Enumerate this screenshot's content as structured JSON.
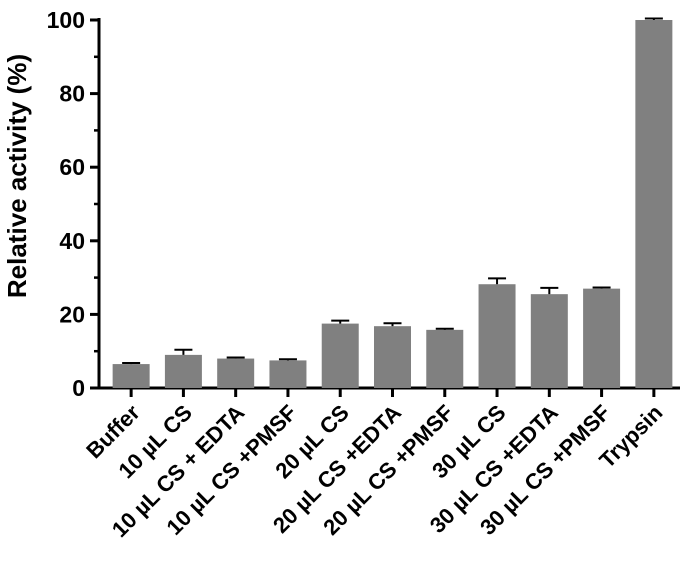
{
  "chart_data": {
    "type": "bar",
    "ylabel": "Relative activity (%)",
    "xlabel": "",
    "ylim": [
      0,
      100
    ],
    "yticks": [
      0,
      20,
      40,
      60,
      80,
      100
    ],
    "grid": false,
    "bar_color": "#808080",
    "categories": [
      "Buffer",
      "10 µL CS",
      "10 µL CS + EDTA",
      "10 µL CS +PMSF",
      "20 µL CS",
      "20 µL CS +EDTA",
      "20 µL CS +PMSF",
      "30 µL CS",
      "30 µL CS +EDTA",
      "30 µL CS +PMSF",
      "Trypsin"
    ],
    "values": [
      6.5,
      9.0,
      8.0,
      7.5,
      17.5,
      16.8,
      15.8,
      28.2,
      25.5,
      27.0,
      100.0
    ],
    "errors": [
      0.3,
      1.4,
      0.3,
      0.3,
      0.8,
      0.8,
      0.3,
      1.6,
      1.7,
      0.3,
      0.4
    ]
  }
}
